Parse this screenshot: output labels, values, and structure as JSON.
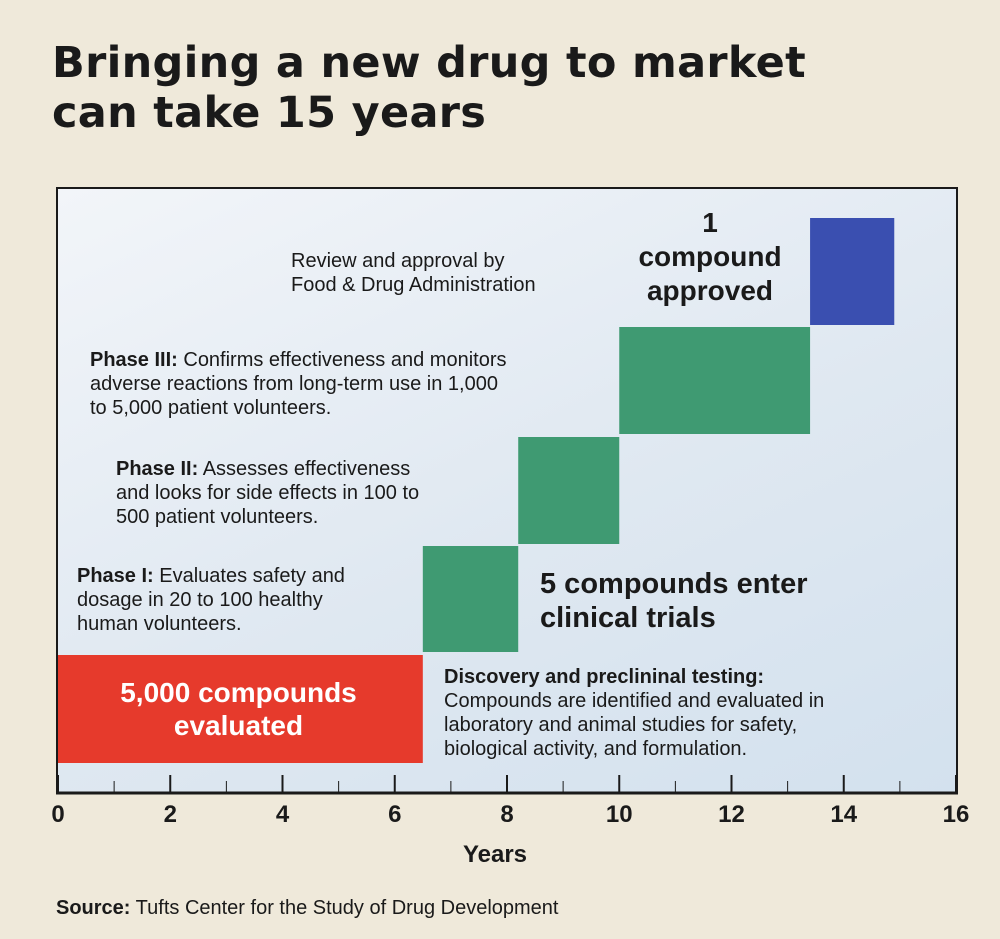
{
  "title_line1": "Bringing a new drug to market",
  "title_line2": "can take 15 years",
  "source_label": "Source:",
  "source_text": "Tufts Center for the Study of Drug Development",
  "annotations": {
    "fda_line1": "Review and approval by",
    "fda_line2": "Food & Drug Administration",
    "approved_count": "1",
    "approved_line1": "compound",
    "approved_line2": "approved",
    "phase3_label": "Phase III:",
    "phase3_line1": " Confirms effectiveness and monitors",
    "phase3_line2": "adverse reactions from long-term use in 1,000",
    "phase3_line3": "to 5,000 patient volunteers.",
    "phase2_label": "Phase II:",
    "phase2_line1": " Assesses effectiveness",
    "phase2_line2": "and looks for side effects in 100 to",
    "phase2_line3": "500 patient volunteers.",
    "phase1_label": "Phase I:",
    "phase1_line1": " Evaluates safety and",
    "phase1_line2": "dosage in 20 to 100 healthy",
    "phase1_line3": "human volunteers.",
    "trials_line1": "5 compounds enter",
    "trials_line2": "clinical trials",
    "discovery_label": "Discovery and preclininal testing:",
    "discovery_line1": "Compounds are identified and evaluated in",
    "discovery_line2": "laboratory and animal studies for safety,",
    "discovery_line3": "biological activity, and formulation.",
    "evaluated_line1": "5,000 compounds",
    "evaluated_line2": "evaluated"
  },
  "chart_data": {
    "type": "bar",
    "orientation": "horizontal-timeline",
    "xlabel": "Years",
    "xlim": [
      0,
      16
    ],
    "x_ticks": [
      0,
      2,
      4,
      6,
      8,
      10,
      12,
      14,
      16
    ],
    "series": [
      {
        "name": "Discovery and preclininal testing",
        "start": 0,
        "end": 6.5,
        "level": 0,
        "color": "#e63a2c"
      },
      {
        "name": "Phase I",
        "start": 6.5,
        "end": 8.2,
        "level": 1,
        "color": "#3f9a72"
      },
      {
        "name": "Phase II",
        "start": 8.2,
        "end": 10,
        "level": 2,
        "color": "#3f9a72"
      },
      {
        "name": "Phase III",
        "start": 10,
        "end": 13.4,
        "level": 3,
        "color": "#3f9a72"
      },
      {
        "name": "Review and approval by Food & Drug Administration",
        "start": 13.4,
        "end": 14.9,
        "level": 4,
        "color": "#3a4fb0"
      }
    ]
  }
}
